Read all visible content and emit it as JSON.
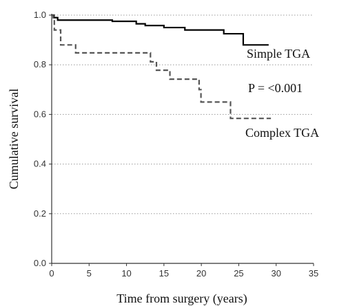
{
  "chart_data": {
    "type": "line",
    "xlabel": "Time from surgery (years)",
    "ylabel": "Cumulative survival",
    "xlim": [
      0,
      35
    ],
    "ylim": [
      0.0,
      1.0
    ],
    "x_ticks": [
      "0",
      "5",
      "10",
      "15",
      "20",
      "25",
      "30",
      "35"
    ],
    "y_ticks": [
      "0.0",
      "0.2",
      "0.4",
      "0.6",
      "0.8",
      "1.0"
    ],
    "grid": "horizontal dotted",
    "series": [
      {
        "name": "Simple TGA",
        "style": "solid",
        "color": "#000000",
        "steps": [
          [
            0,
            1.0
          ],
          [
            0.3,
            0.99
          ],
          [
            0.8,
            0.98
          ],
          [
            8.1,
            0.975
          ],
          [
            11.3,
            0.965
          ],
          [
            12.5,
            0.958
          ],
          [
            15.0,
            0.95
          ],
          [
            17.8,
            0.94
          ],
          [
            23.0,
            0.925
          ],
          [
            25.6,
            0.88
          ],
          [
            29.0,
            0.88
          ]
        ]
      },
      {
        "name": "Complex TGA",
        "style": "dashed",
        "color": "#555555",
        "steps": [
          [
            0,
            1.0
          ],
          [
            0.2,
            0.985
          ],
          [
            0.35,
            0.94
          ],
          [
            1.2,
            0.88
          ],
          [
            3.2,
            0.848
          ],
          [
            13.2,
            0.812
          ],
          [
            14.0,
            0.778
          ],
          [
            15.8,
            0.742
          ],
          [
            19.7,
            0.7
          ],
          [
            19.95,
            0.65
          ],
          [
            23.9,
            0.584
          ],
          [
            29.3,
            0.584
          ]
        ]
      }
    ],
    "annotations": [
      "Simple TGA",
      "P = <0.001",
      "Complex TGA"
    ]
  }
}
